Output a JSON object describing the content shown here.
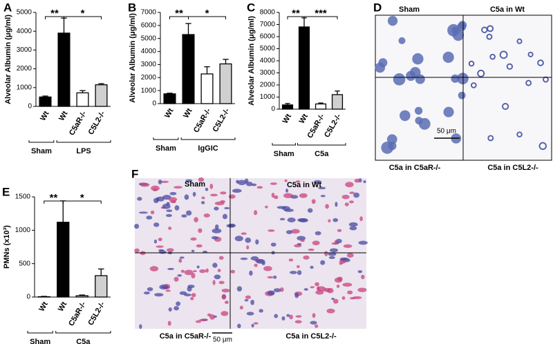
{
  "chart_data": [
    {
      "type": "bar",
      "panel": "A",
      "ylabel": "Alveolar Albumin (μg/ml)",
      "categories": [
        "Wt",
        "Wt",
        "C5aR-/-",
        "C5L2-/-"
      ],
      "values": [
        500,
        3900,
        720,
        1150
      ],
      "errors": [
        50,
        800,
        120,
        60
      ],
      "colors": [
        "#000000",
        "#000000",
        "#ffffff",
        "#d0d0d0"
      ],
      "ylim": [
        0,
        5000
      ],
      "yticks": [
        0,
        1000,
        2000,
        3000,
        4000,
        5000
      ],
      "groups": [
        "Sham",
        "LPS"
      ],
      "significance": [
        "**",
        "*"
      ]
    },
    {
      "type": "bar",
      "panel": "B",
      "ylabel": "Alveolar Albumin (μg/ml)",
      "categories": [
        "Wt",
        "Wt",
        "C5aR-/-",
        "C5L2-/-"
      ],
      "values": [
        750,
        5300,
        2280,
        3050
      ],
      "errors": [
        50,
        850,
        550,
        350
      ],
      "colors": [
        "#000000",
        "#000000",
        "#ffffff",
        "#d0d0d0"
      ],
      "ylim": [
        0,
        7000
      ],
      "yticks": [
        0,
        1000,
        2000,
        3000,
        4000,
        5000,
        6000,
        7000
      ],
      "groups": [
        "Sham",
        "IgGIC"
      ],
      "significance": [
        "**",
        "*"
      ]
    },
    {
      "type": "bar",
      "panel": "C",
      "ylabel": "Alveolar Albumin (μg/ml)",
      "categories": [
        "Wt",
        "Wt",
        "C5aR-/-",
        "C5L2-/-"
      ],
      "values": [
        350,
        6800,
        430,
        1200
      ],
      "errors": [
        120,
        750,
        80,
        300
      ],
      "colors": [
        "#000000",
        "#000000",
        "#ffffff",
        "#d0d0d0"
      ],
      "ylim": [
        0,
        8000
      ],
      "yticks": [
        0,
        1000,
        2000,
        3000,
        4000,
        5000,
        6000,
        7000,
        8000
      ],
      "groups": [
        "Sham",
        "C5a"
      ],
      "significance": [
        "**",
        "***"
      ]
    },
    {
      "type": "bar",
      "panel": "E",
      "ylabel": "PMNs (x10³)",
      "categories": [
        "Wt",
        "Wt",
        "C5aR-/-",
        "C5L2-/-"
      ],
      "values": [
        5,
        1120,
        20,
        320
      ],
      "errors": [
        5,
        320,
        10,
        100
      ],
      "colors": [
        "#000000",
        "#000000",
        "#ffffff",
        "#d0d0d0"
      ],
      "ylim": [
        0,
        1500
      ],
      "yticks": [
        0,
        500,
        1000,
        1500
      ],
      "groups": [
        "Sham",
        "C5a"
      ],
      "significance": [
        "**",
        "*"
      ]
    }
  ],
  "images": [
    {
      "panel": "D",
      "labels": [
        "Sham",
        "C5a in Wt",
        "C5a in C5aR-/-",
        "C5a in C5L2-/-"
      ],
      "scale_bar": "50 μm"
    },
    {
      "panel": "F",
      "labels": [
        "Sham",
        "C5a in Wt",
        "C5a in C5aR-/-",
        "C5a in C5L2-/-"
      ],
      "scale_bar": "50 μm"
    }
  ]
}
